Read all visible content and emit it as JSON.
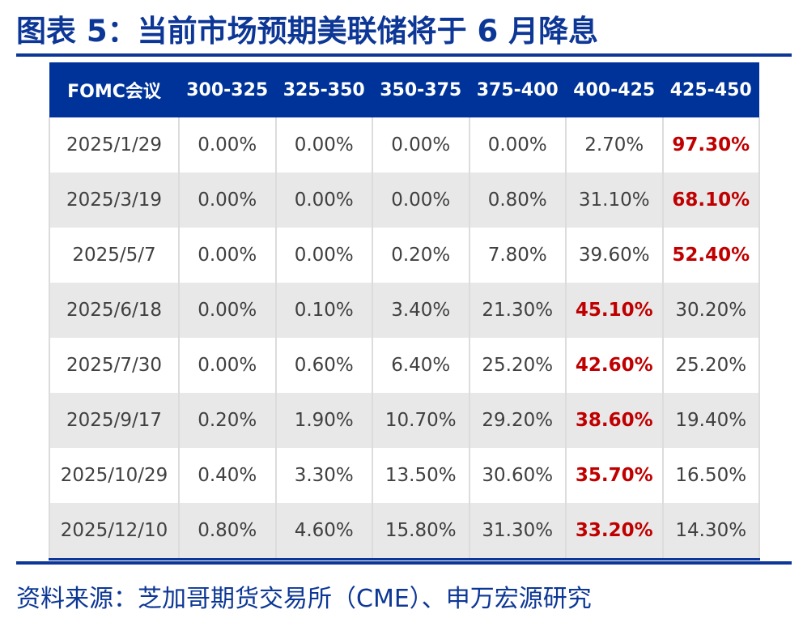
{
  "title": "图表 5：当前市场预期美联储将于 6 月降息",
  "table": {
    "headers": [
      "FOMC会议",
      "300-325",
      "325-350",
      "350-375",
      "375-400",
      "400-425",
      "425-450"
    ],
    "rows": [
      {
        "date": "2025/1/29",
        "values": [
          "0.00%",
          "0.00%",
          "0.00%",
          "0.00%",
          "2.70%",
          "97.30%"
        ],
        "highlight_index": 5
      },
      {
        "date": "2025/3/19",
        "values": [
          "0.00%",
          "0.00%",
          "0.00%",
          "0.80%",
          "31.10%",
          "68.10%"
        ],
        "highlight_index": 5
      },
      {
        "date": "2025/5/7",
        "values": [
          "0.00%",
          "0.00%",
          "0.20%",
          "7.80%",
          "39.60%",
          "52.40%"
        ],
        "highlight_index": 5
      },
      {
        "date": "2025/6/18",
        "values": [
          "0.00%",
          "0.10%",
          "3.40%",
          "21.30%",
          "45.10%",
          "30.20%"
        ],
        "highlight_index": 4
      },
      {
        "date": "2025/7/30",
        "values": [
          "0.00%",
          "0.60%",
          "6.40%",
          "25.20%",
          "42.60%",
          "25.20%"
        ],
        "highlight_index": 4
      },
      {
        "date": "2025/9/17",
        "values": [
          "0.20%",
          "1.90%",
          "10.70%",
          "29.20%",
          "38.60%",
          "19.40%"
        ],
        "highlight_index": 4
      },
      {
        "date": "2025/10/29",
        "values": [
          "0.40%",
          "3.30%",
          "13.50%",
          "30.60%",
          "35.70%",
          "16.50%"
        ],
        "highlight_index": 4
      },
      {
        "date": "2025/12/10",
        "values": [
          "0.80%",
          "4.60%",
          "15.80%",
          "31.30%",
          "33.20%",
          "14.30%"
        ],
        "highlight_index": 4
      }
    ]
  },
  "source": "资料来源：芝加哥期货交易所（CME）、申万宏源研究",
  "colors": {
    "brand_blue": "#0d3796",
    "header_bg": "#003399",
    "highlight_red": "#c00000",
    "stripe_gray": "#e8e8e8"
  }
}
